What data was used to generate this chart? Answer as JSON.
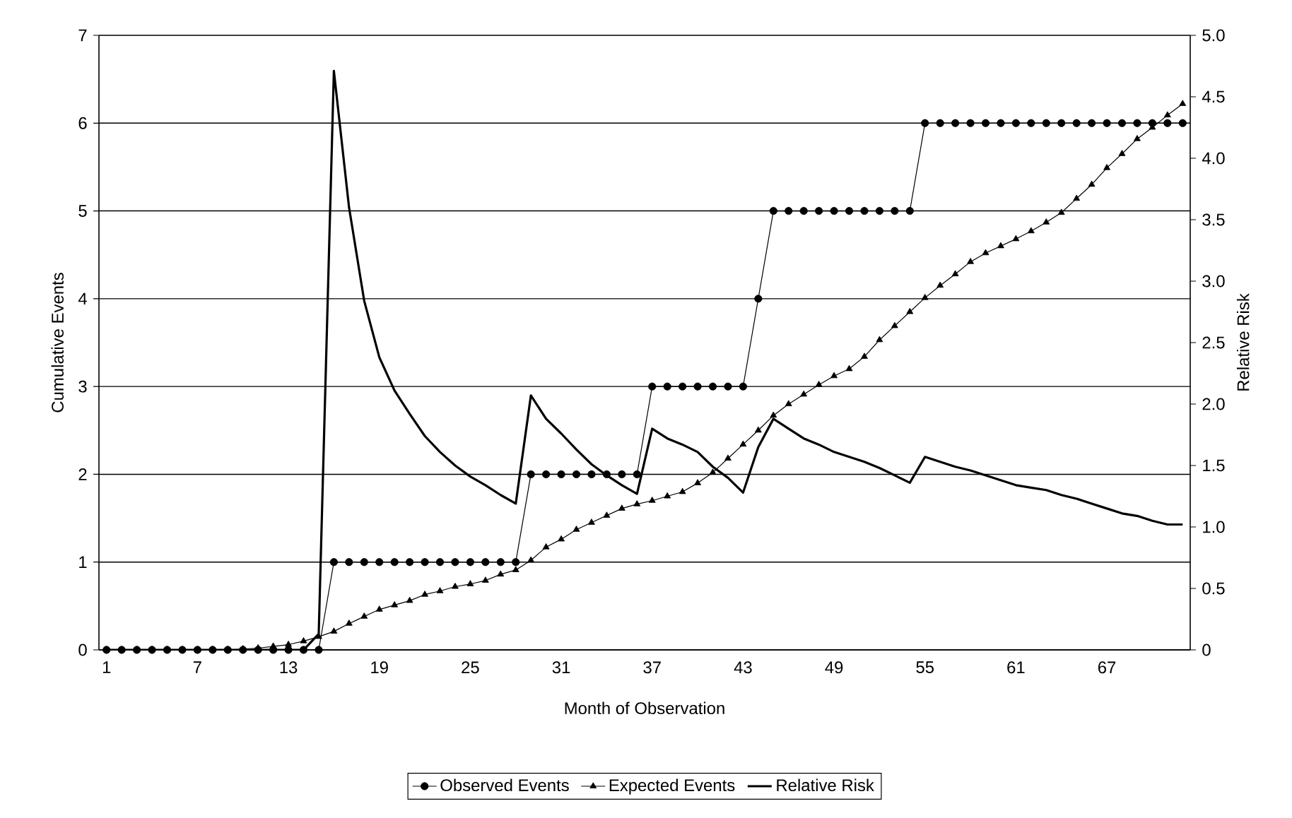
{
  "chart_data": {
    "type": "line",
    "xlabel": "Month of Observation",
    "ylabel": "Cumulative Events",
    "y2label": "Relative Risk",
    "categories": [
      "1",
      null,
      null,
      null,
      null,
      null,
      "7",
      null,
      null,
      null,
      null,
      null,
      "13",
      null,
      null,
      null,
      null,
      null,
      "19",
      null,
      null,
      null,
      null,
      null,
      "25",
      null,
      null,
      null,
      null,
      null,
      "31",
      null,
      null,
      null,
      null,
      null,
      "37",
      null,
      null,
      null,
      null,
      null,
      "43",
      null,
      null,
      null,
      null,
      null,
      "49",
      null,
      null,
      null,
      null,
      null,
      "55",
      null,
      null,
      null,
      null,
      null,
      "61",
      null,
      null,
      null,
      null,
      null,
      "67",
      null,
      null,
      null,
      null,
      null
    ],
    "series": [
      {
        "name": "Observed Events",
        "color": "#000000",
        "marker": "circle",
        "values": [
          0,
          0,
          0,
          0,
          0,
          0,
          0,
          0,
          0,
          0,
          0,
          0,
          0,
          0,
          0,
          1,
          1,
          1,
          1,
          1,
          1,
          1,
          1,
          1,
          1,
          1,
          1,
          1,
          2,
          2,
          2,
          2,
          2,
          2,
          2,
          2,
          3,
          3,
          3,
          3,
          3,
          3,
          3,
          4,
          5,
          5,
          5,
          5,
          5,
          5,
          5,
          5,
          5,
          5,
          6,
          6,
          6,
          6,
          6,
          6,
          6,
          6,
          6,
          6,
          6,
          6,
          6,
          6,
          6,
          6,
          6,
          6
        ]
      },
      {
        "name": "Expected Events",
        "color": "#000000",
        "marker": "triangle",
        "values": [
          0,
          0,
          0,
          0,
          0,
          0,
          0,
          0,
          0,
          0.01,
          0.02,
          0.04,
          0.06,
          0.1,
          0.15,
          0.21,
          0.3,
          0.38,
          0.46,
          0.51,
          0.56,
          0.63,
          0.67,
          0.72,
          0.75,
          0.79,
          0.86,
          0.91,
          1.02,
          1.17,
          1.26,
          1.37,
          1.45,
          1.53,
          1.61,
          1.66,
          1.7,
          1.75,
          1.8,
          1.9,
          2.02,
          2.18,
          2.34,
          2.5,
          2.67,
          2.8,
          2.91,
          3.02,
          3.12,
          3.2,
          3.34,
          3.53,
          3.69,
          3.85,
          4.01,
          4.15,
          4.28,
          4.42,
          4.52,
          4.6,
          4.68,
          4.77,
          4.87,
          4.98,
          5.14,
          5.3,
          5.49,
          5.65,
          5.82,
          5.95,
          6.09,
          6.22
        ]
      },
      {
        "name": "Relative Risk",
        "color": "#000000",
        "marker": "none",
        "axis": "y2",
        "values": [
          0,
          0,
          0,
          0,
          0,
          0,
          0,
          0,
          0,
          0,
          0,
          0,
          0,
          0,
          0.13,
          4.71,
          3.6,
          2.84,
          2.38,
          2.11,
          1.92,
          1.74,
          1.61,
          1.5,
          1.41,
          1.34,
          1.26,
          1.19,
          2.07,
          1.88,
          1.76,
          1.63,
          1.51,
          1.42,
          1.34,
          1.27,
          1.8,
          1.72,
          1.67,
          1.61,
          1.49,
          1.4,
          1.28,
          1.65,
          1.88,
          1.8,
          1.72,
          1.67,
          1.61,
          1.57,
          1.53,
          1.48,
          1.42,
          1.36,
          1.57,
          1.53,
          1.49,
          1.46,
          1.42,
          1.38,
          1.34,
          1.32,
          1.3,
          1.26,
          1.23,
          1.19,
          1.15,
          1.11,
          1.09,
          1.05,
          1.02,
          1.02
        ]
      }
    ],
    "ylim": [
      0,
      7
    ],
    "yticks": [
      0,
      1,
      2,
      3,
      4,
      5,
      6,
      7
    ],
    "y2lim": [
      0,
      5
    ],
    "y2ticks": [
      0,
      0.5,
      {
        "value": 1,
        "label": "1.0"
      },
      1.5,
      {
        "value": 2,
        "label": "2.0"
      },
      2.5,
      {
        "value": 3,
        "label": "3.0"
      },
      3.5,
      {
        "value": 4,
        "label": "4.0"
      },
      4.5,
      {
        "value": 5,
        "label": "5.0"
      }
    ],
    "grid": "y",
    "legend": "bottom"
  }
}
